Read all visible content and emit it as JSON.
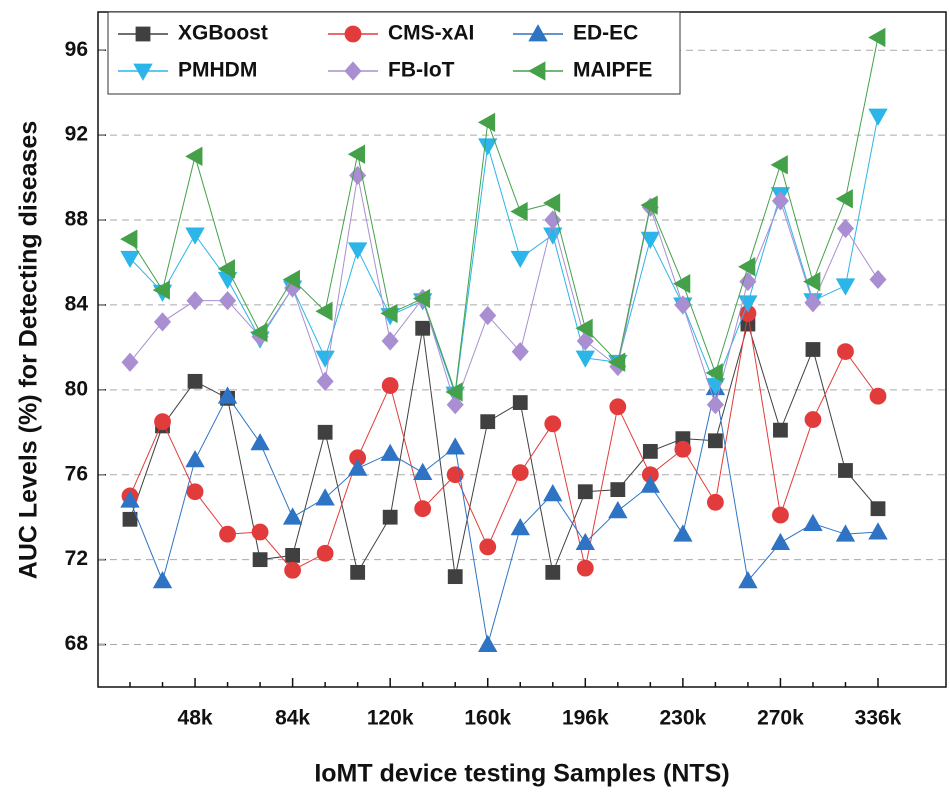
{
  "chart_data": {
    "type": "line",
    "xlabel": "IoMT device testing Samples (NTS)",
    "ylabel": "AUC Levels (%) for Detecting diseases",
    "categories": [
      null,
      null,
      "48k",
      null,
      null,
      "84k",
      null,
      null,
      "120k",
      null,
      null,
      "160k",
      null,
      null,
      "196k",
      null,
      null,
      "230k",
      null,
      null,
      "270k",
      null,
      null,
      "336k"
    ],
    "ylim": [
      66,
      97.8
    ],
    "yticks": [
      68,
      72,
      76,
      80,
      84,
      88,
      92,
      96
    ],
    "grid": true,
    "legend": "upper left",
    "series": [
      {
        "name": "XGBoost",
        "color": "#404040",
        "marker": "square",
        "values": [
          73.9,
          78.3,
          80.4,
          79.6,
          72.0,
          72.2,
          78.0,
          71.4,
          74.0,
          82.9,
          71.2,
          78.5,
          79.4,
          71.4,
          75.2,
          75.3,
          77.1,
          77.7,
          77.6,
          83.1,
          78.1,
          81.9,
          76.2,
          74.4
        ]
      },
      {
        "name": "CMS-xAI",
        "color": "#e23b3b",
        "marker": "circle",
        "values": [
          75.0,
          78.5,
          75.2,
          73.2,
          73.3,
          71.5,
          72.3,
          76.8,
          80.2,
          74.4,
          76.0,
          72.6,
          76.1,
          78.4,
          71.6,
          79.2,
          76.0,
          77.2,
          74.7,
          83.6,
          74.1,
          78.6,
          81.8,
          79.7
        ]
      },
      {
        "name": "ED-EC",
        "color": "#2f74c4",
        "marker": "triangle-up",
        "values": [
          74.8,
          71.0,
          76.7,
          79.7,
          77.5,
          74.0,
          74.9,
          76.3,
          77.0,
          76.1,
          77.3,
          68.0,
          73.5,
          75.1,
          72.8,
          74.3,
          75.5,
          73.2,
          80.1,
          71.0,
          72.8,
          73.7,
          73.2,
          73.3
        ]
      },
      {
        "name": "PMHDM",
        "color": "#2bb5e8",
        "marker": "triangle-down",
        "values": [
          86.2,
          84.6,
          87.3,
          85.2,
          82.4,
          84.8,
          81.5,
          86.6,
          83.5,
          84.2,
          79.8,
          91.5,
          86.2,
          87.3,
          81.5,
          81.3,
          87.1,
          84.0,
          80.2,
          84.1,
          89.2,
          84.2,
          84.9,
          92.9
        ]
      },
      {
        "name": "FB-IoT",
        "color": "#a98fd2",
        "marker": "diamond",
        "values": [
          81.3,
          83.2,
          84.2,
          84.2,
          82.5,
          84.8,
          80.4,
          90.1,
          82.3,
          84.3,
          79.3,
          83.5,
          81.8,
          88.0,
          82.3,
          81.1,
          88.6,
          84.0,
          79.3,
          85.1,
          88.9,
          84.1,
          87.6,
          85.2
        ]
      },
      {
        "name": "MAIPFE",
        "color": "#44a149",
        "marker": "triangle-left",
        "values": [
          87.1,
          84.7,
          91.0,
          85.7,
          82.7,
          85.2,
          83.7,
          91.1,
          83.6,
          84.3,
          79.9,
          92.6,
          88.4,
          88.8,
          82.9,
          81.3,
          88.7,
          85.0,
          80.8,
          85.8,
          90.6,
          85.1,
          89.0,
          96.6
        ]
      }
    ]
  }
}
